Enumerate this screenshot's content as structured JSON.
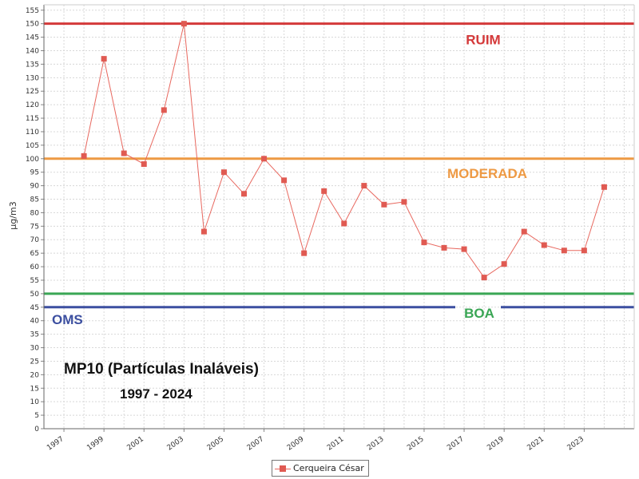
{
  "chart_data": {
    "type": "line",
    "title": "MP10 (Partículas Inaláveis)",
    "subtitle": "1997 - 2024",
    "xlabel": "",
    "ylabel": "µg/m3",
    "ylim": [
      0,
      157
    ],
    "yticks": [
      0,
      5,
      10,
      15,
      20,
      25,
      30,
      35,
      40,
      45,
      50,
      55,
      60,
      65,
      70,
      75,
      80,
      85,
      90,
      95,
      100,
      105,
      110,
      115,
      120,
      125,
      130,
      135,
      140,
      145,
      150,
      155
    ],
    "xlim": [
      1996,
      2025.5
    ],
    "xticks": [
      1997,
      1999,
      2001,
      2003,
      2005,
      2007,
      2009,
      2011,
      2013,
      2015,
      2017,
      2019,
      2021,
      2023
    ],
    "grid": true,
    "legend_position": "bottom-center",
    "series": [
      {
        "name": "Cerqueira César",
        "color": "#e05a52",
        "x": [
          1998,
          1999,
          2000,
          2001,
          2002,
          2003,
          2004,
          2005,
          2006,
          2007,
          2008,
          2009,
          2010,
          2011,
          2012,
          2013,
          2014,
          2015,
          2016,
          2017,
          2018,
          2019,
          2020,
          2021,
          2022,
          2023,
          2024
        ],
        "y": [
          101,
          137,
          102,
          98,
          118,
          150,
          73,
          95,
          87,
          100,
          92,
          65,
          88,
          76,
          90,
          83,
          84,
          69,
          67,
          66.5,
          56,
          61,
          73,
          68,
          66,
          66,
          89.5
        ]
      }
    ],
    "reference_lines": [
      {
        "label": "RUIM",
        "value": 150,
        "color": "#d4393a"
      },
      {
        "label": "MODERADA",
        "value": 100,
        "color": "#ee9a44"
      },
      {
        "label": "BOA",
        "value": 50,
        "color": "#3aa655"
      },
      {
        "label": "OMS",
        "value": 45,
        "color": "#3c4fa0"
      }
    ]
  },
  "legend": {
    "label": "Cerqueira César"
  }
}
